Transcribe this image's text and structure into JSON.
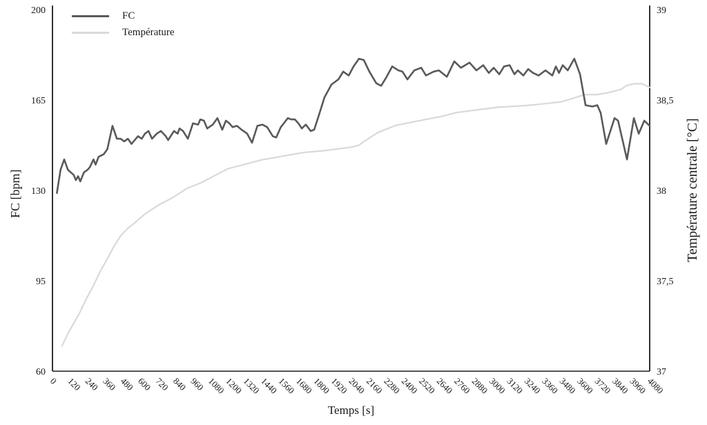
{
  "page": {
    "background": "#ffffff",
    "text_color": "#1a1a1a"
  },
  "chart_data": {
    "type": "line",
    "title": "",
    "xlabel": "Temps [s]",
    "ylabel_left": "FC [bpm]",
    "ylabel_right": "Température centrale [°C]",
    "grid": false,
    "axis_color": "#1a1a1a",
    "x_range": [
      0,
      4080
    ],
    "x_tick_step": 120,
    "x_ticks": [
      0,
      120,
      240,
      360,
      480,
      600,
      720,
      840,
      960,
      1080,
      1200,
      1320,
      1440,
      1560,
      1680,
      1800,
      1920,
      2040,
      2160,
      2280,
      2400,
      2520,
      2640,
      2760,
      2880,
      3000,
      3120,
      3240,
      3360,
      3480,
      3600,
      3720,
      3840,
      3960,
      4080
    ],
    "y_left": {
      "range": [
        60,
        200
      ],
      "ticks": [
        {
          "v": 200,
          "label": "200"
        },
        {
          "v": 165,
          "label": "165"
        },
        {
          "v": 130,
          "label": "130"
        },
        {
          "v": 95,
          "label": "95"
        },
        {
          "v": 60,
          "label": "60"
        }
      ]
    },
    "y_right": {
      "range": [
        37,
        39
      ],
      "ticks": [
        {
          "v": 39,
          "label": "39"
        },
        {
          "v": 38.5,
          "label": "38,5"
        },
        {
          "v": 38,
          "label": "38"
        },
        {
          "v": 37.5,
          "label": "37,5"
        },
        {
          "v": 37,
          "label": "37"
        }
      ]
    },
    "legend": {
      "position": "top-left-inside",
      "items": [
        {
          "name": "FC",
          "color": "#595959"
        },
        {
          "name": "Température",
          "color": "#d9d9d9"
        }
      ]
    },
    "series": [
      {
        "name": "FC",
        "axis": "left",
        "color": "#595959",
        "width": 2.6,
        "points": [
          [
            30,
            129
          ],
          [
            55,
            138
          ],
          [
            80,
            142
          ],
          [
            105,
            138
          ],
          [
            125,
            137
          ],
          [
            145,
            136
          ],
          [
            160,
            134
          ],
          [
            175,
            135.5
          ],
          [
            190,
            133.5
          ],
          [
            215,
            137
          ],
          [
            240,
            138
          ],
          [
            255,
            139
          ],
          [
            280,
            142
          ],
          [
            295,
            140
          ],
          [
            315,
            143
          ],
          [
            350,
            144
          ],
          [
            375,
            146
          ],
          [
            410,
            155
          ],
          [
            440,
            150
          ],
          [
            465,
            150
          ],
          [
            490,
            149
          ],
          [
            515,
            150
          ],
          [
            540,
            148
          ],
          [
            570,
            150
          ],
          [
            585,
            151
          ],
          [
            610,
            150
          ],
          [
            632,
            152
          ],
          [
            656,
            153
          ],
          [
            680,
            150
          ],
          [
            712,
            152
          ],
          [
            741,
            153
          ],
          [
            774,
            151
          ],
          [
            790,
            149.5
          ],
          [
            830,
            153
          ],
          [
            855,
            152
          ],
          [
            868,
            154
          ],
          [
            892,
            153
          ],
          [
            925,
            150
          ],
          [
            960,
            156
          ],
          [
            995,
            155.5
          ],
          [
            1010,
            157.5
          ],
          [
            1035,
            157
          ],
          [
            1057,
            154
          ],
          [
            1095,
            155.5
          ],
          [
            1127,
            158
          ],
          [
            1160,
            153.5
          ],
          [
            1185,
            157
          ],
          [
            1208,
            156
          ],
          [
            1231,
            154.5
          ],
          [
            1260,
            155
          ],
          [
            1292,
            153.5
          ],
          [
            1330,
            152
          ],
          [
            1363,
            148.5
          ],
          [
            1400,
            155
          ],
          [
            1434,
            155.5
          ],
          [
            1467,
            154.5
          ],
          [
            1505,
            151
          ],
          [
            1528,
            150.5
          ],
          [
            1560,
            154.5
          ],
          [
            1608,
            158
          ],
          [
            1632,
            157.5
          ],
          [
            1656,
            157.5
          ],
          [
            1680,
            156
          ],
          [
            1703,
            154
          ],
          [
            1731,
            155.5
          ],
          [
            1764,
            153
          ],
          [
            1788,
            153.5
          ],
          [
            1825,
            160
          ],
          [
            1858,
            166
          ],
          [
            1906,
            171
          ],
          [
            1953,
            173
          ],
          [
            1986,
            176
          ],
          [
            2024,
            174.5
          ],
          [
            2057,
            178
          ],
          [
            2094,
            181
          ],
          [
            2127,
            180.5
          ],
          [
            2165,
            176
          ],
          [
            2212,
            171.5
          ],
          [
            2245,
            170.5
          ],
          [
            2283,
            174
          ],
          [
            2321,
            178
          ],
          [
            2363,
            176.5
          ],
          [
            2391,
            176
          ],
          [
            2425,
            173
          ],
          [
            2472,
            176.5
          ],
          [
            2519,
            177.5
          ],
          [
            2552,
            174.5
          ],
          [
            2604,
            176
          ],
          [
            2640,
            176.5
          ],
          [
            2694,
            174
          ],
          [
            2745,
            180
          ],
          [
            2790,
            177.5
          ],
          [
            2849,
            179.5
          ],
          [
            2896,
            176.5
          ],
          [
            2943,
            178.5
          ],
          [
            2981,
            175.5
          ],
          [
            3014,
            177.5
          ],
          [
            3052,
            175
          ],
          [
            3085,
            178
          ],
          [
            3123,
            178.5
          ],
          [
            3156,
            175
          ],
          [
            3179,
            176.5
          ],
          [
            3217,
            174.5
          ],
          [
            3250,
            177
          ],
          [
            3283,
            175.5
          ],
          [
            3321,
            174.5
          ],
          [
            3368,
            176.5
          ],
          [
            3415,
            174.5
          ],
          [
            3439,
            178
          ],
          [
            3460,
            175.5
          ],
          [
            3486,
            178.5
          ],
          [
            3520,
            176.5
          ],
          [
            3565,
            181
          ],
          [
            3604,
            175
          ],
          [
            3642,
            163
          ],
          [
            3689,
            162.5
          ],
          [
            3722,
            163
          ],
          [
            3745,
            160
          ],
          [
            3783,
            148
          ],
          [
            3840,
            158
          ],
          [
            3864,
            157
          ],
          [
            3925,
            142
          ],
          [
            3972,
            158
          ],
          [
            4005,
            152
          ],
          [
            4043,
            157
          ],
          [
            4080,
            155
          ]
        ]
      },
      {
        "name": "Température",
        "axis": "right",
        "color": "#d9d9d9",
        "width": 2.2,
        "points": [
          [
            65,
            37.14
          ],
          [
            113,
            37.22
          ],
          [
            184,
            37.32
          ],
          [
            231,
            37.4
          ],
          [
            278,
            37.47
          ],
          [
            325,
            37.55
          ],
          [
            373,
            37.62
          ],
          [
            420,
            37.69
          ],
          [
            467,
            37.75
          ],
          [
            514,
            37.79
          ],
          [
            561,
            37.82
          ],
          [
            632,
            37.87
          ],
          [
            726,
            37.92
          ],
          [
            821,
            37.96
          ],
          [
            915,
            38.01
          ],
          [
            1009,
            38.04
          ],
          [
            1104,
            38.08
          ],
          [
            1198,
            38.12
          ],
          [
            1292,
            38.14
          ],
          [
            1434,
            38.17
          ],
          [
            1576,
            38.19
          ],
          [
            1717,
            38.21
          ],
          [
            1858,
            38.22
          ],
          [
            1953,
            38.23
          ],
          [
            2047,
            38.24
          ],
          [
            2094,
            38.25
          ],
          [
            2127,
            38.27
          ],
          [
            2222,
            38.32
          ],
          [
            2345,
            38.36
          ],
          [
            2533,
            38.39
          ],
          [
            2661,
            38.41
          ],
          [
            2755,
            38.43
          ],
          [
            2849,
            38.44
          ],
          [
            2943,
            38.45
          ],
          [
            3038,
            38.46
          ],
          [
            3240,
            38.47
          ],
          [
            3368,
            38.48
          ],
          [
            3476,
            38.49
          ],
          [
            3557,
            38.51
          ],
          [
            3637,
            38.53
          ],
          [
            3722,
            38.53
          ],
          [
            3793,
            38.54
          ],
          [
            3887,
            38.56
          ],
          [
            3920,
            38.58
          ],
          [
            3972,
            38.59
          ],
          [
            4029,
            38.59
          ],
          [
            4080,
            38.57
          ]
        ]
      }
    ]
  }
}
